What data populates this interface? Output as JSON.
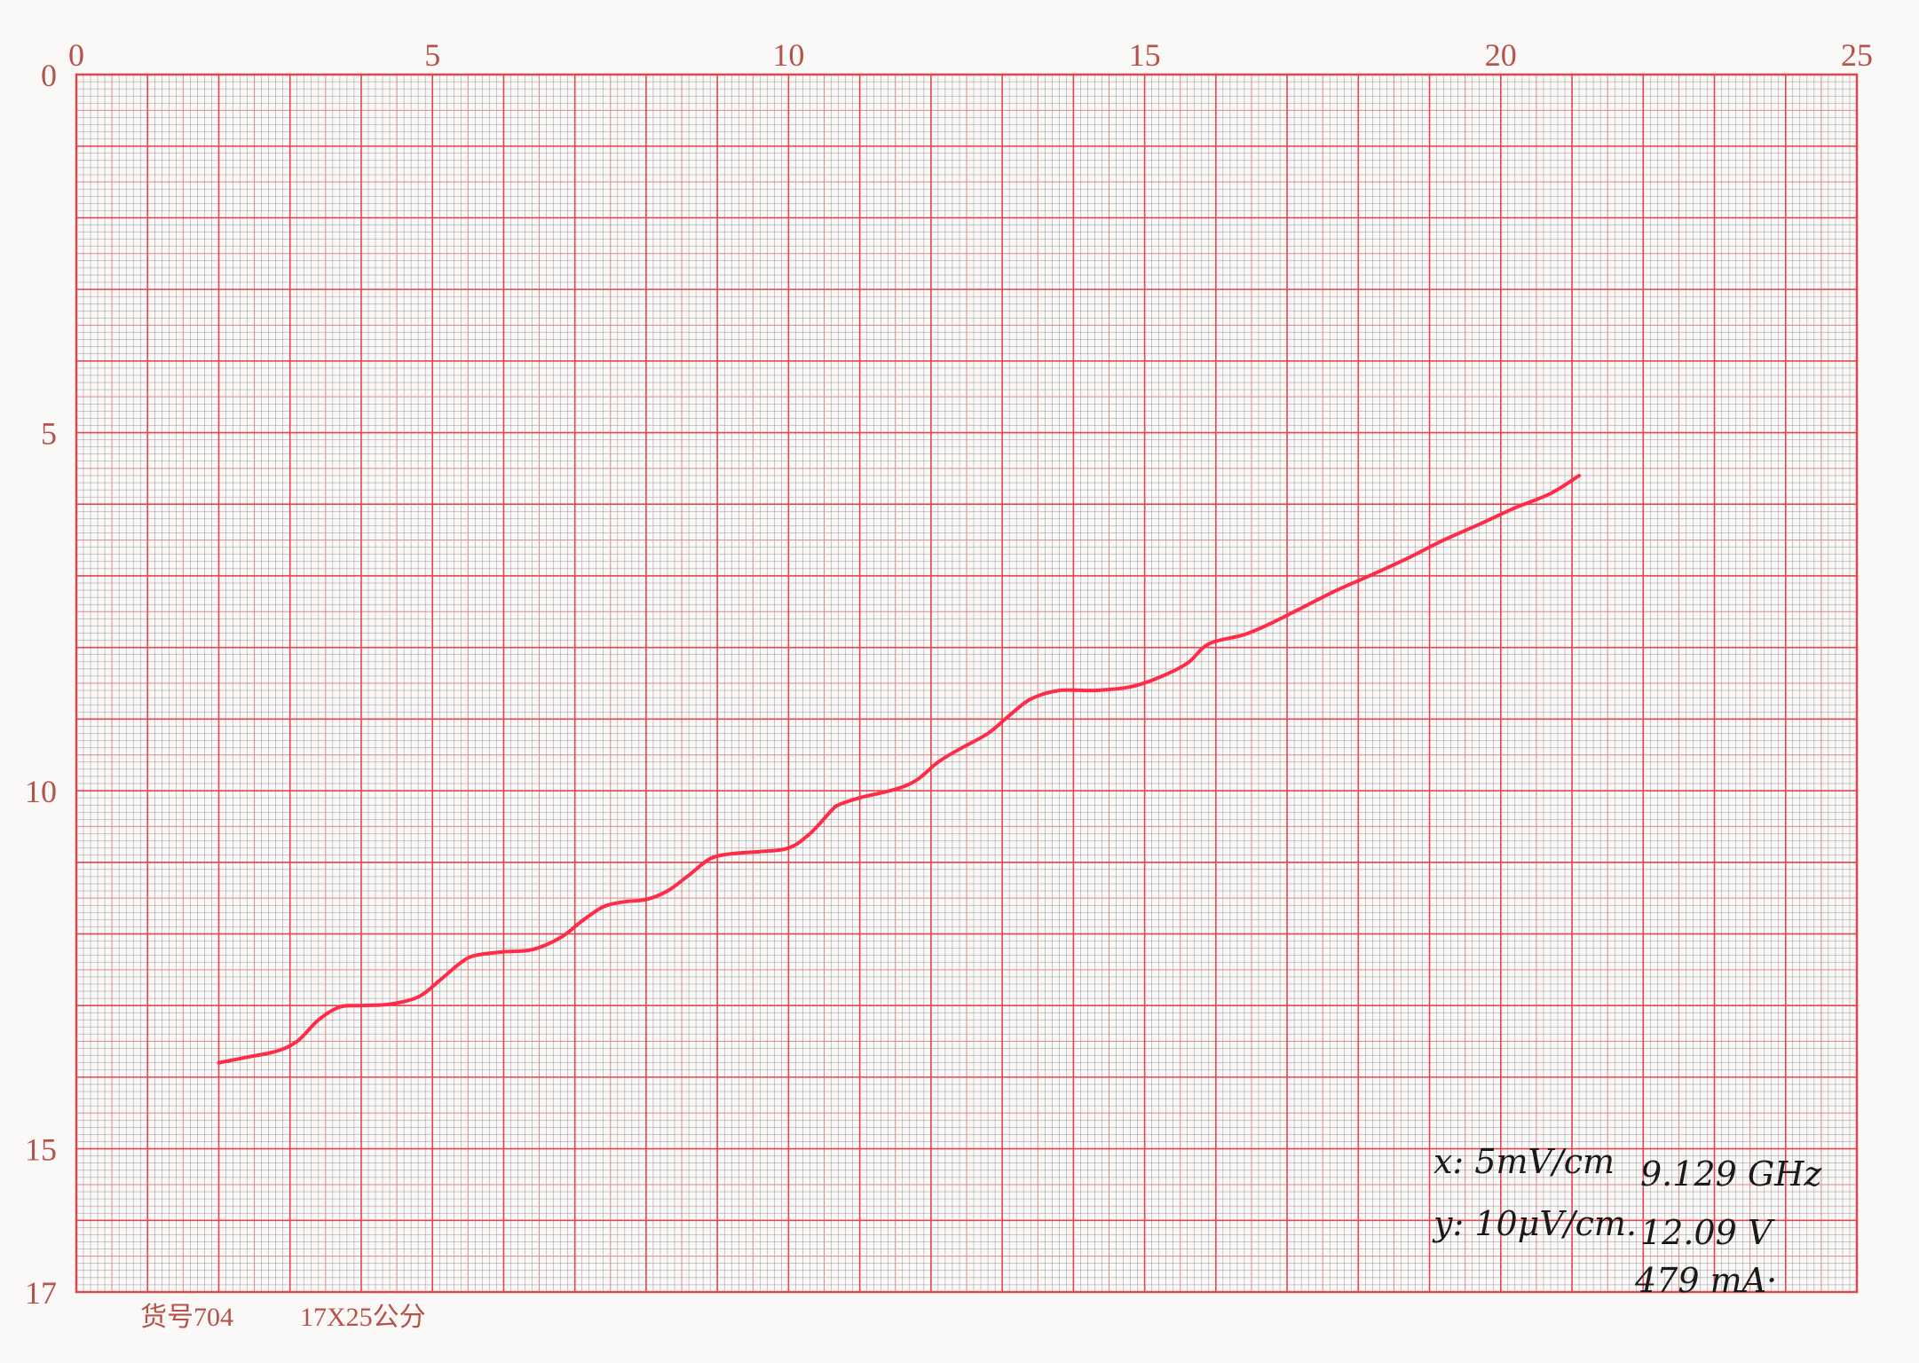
{
  "chart_data": {
    "type": "line",
    "title": "",
    "xlabel": "",
    "ylabel": "",
    "xlim": [
      0,
      25
    ],
    "ylim": [
      0,
      17
    ],
    "y_inverted": true,
    "grid": true,
    "x_ticks": [
      "0",
      "5",
      "10",
      "15",
      "20",
      "25"
    ],
    "y_ticks": [
      "0",
      "5",
      "10",
      "15",
      "17"
    ],
    "colors": {
      "paper": "#fbf9f7",
      "minor_grid": "#8a8a8a",
      "mid_grid": "#d98a8a",
      "major_grid": "#e0484f",
      "trace": "#ff2b48",
      "labels": "#b5524a",
      "ink": "#1a1a1a"
    },
    "series": [
      {
        "x": [
          2.0,
          2.4,
          2.8,
          3.1,
          3.4,
          3.7,
          4.0,
          4.4,
          4.8,
          5.1,
          5.4,
          5.6,
          6.0,
          6.4,
          6.8,
          7.1,
          7.4,
          7.7,
          8.0,
          8.3,
          8.6,
          8.9,
          9.2,
          9.6,
          10.0,
          10.3,
          10.6,
          10.7,
          11.0,
          11.5,
          11.8,
          12.1,
          12.4,
          12.8,
          13.1,
          13.4,
          13.8,
          14.3,
          14.8,
          15.2,
          15.6,
          15.9,
          16.4,
          16.8,
          17.2,
          17.7,
          18.2,
          18.7,
          19.2,
          19.7,
          20.2,
          20.7,
          21.1
        ],
        "y": [
          13.8,
          13.72,
          13.64,
          13.5,
          13.2,
          13.02,
          13.0,
          12.98,
          12.88,
          12.65,
          12.4,
          12.3,
          12.25,
          12.22,
          12.05,
          11.82,
          11.62,
          11.55,
          11.52,
          11.4,
          11.18,
          10.95,
          10.88,
          10.85,
          10.8,
          10.6,
          10.28,
          10.2,
          10.1,
          9.98,
          9.85,
          9.6,
          9.42,
          9.2,
          8.95,
          8.72,
          8.6,
          8.6,
          8.55,
          8.42,
          8.22,
          7.95,
          7.82,
          7.65,
          7.45,
          7.2,
          6.98,
          6.75,
          6.5,
          6.28,
          6.05,
          5.85,
          5.6
        ]
      }
    ],
    "annotations": {
      "x_scale": "x: 5mV/cm",
      "y_scale": "y: 10μV/cm.",
      "frequency": "9.129 GHz",
      "voltage": "12.09 V",
      "current": "479 mA·"
    },
    "footer": {
      "item_no": "货号704",
      "size": "17X25公分"
    }
  }
}
